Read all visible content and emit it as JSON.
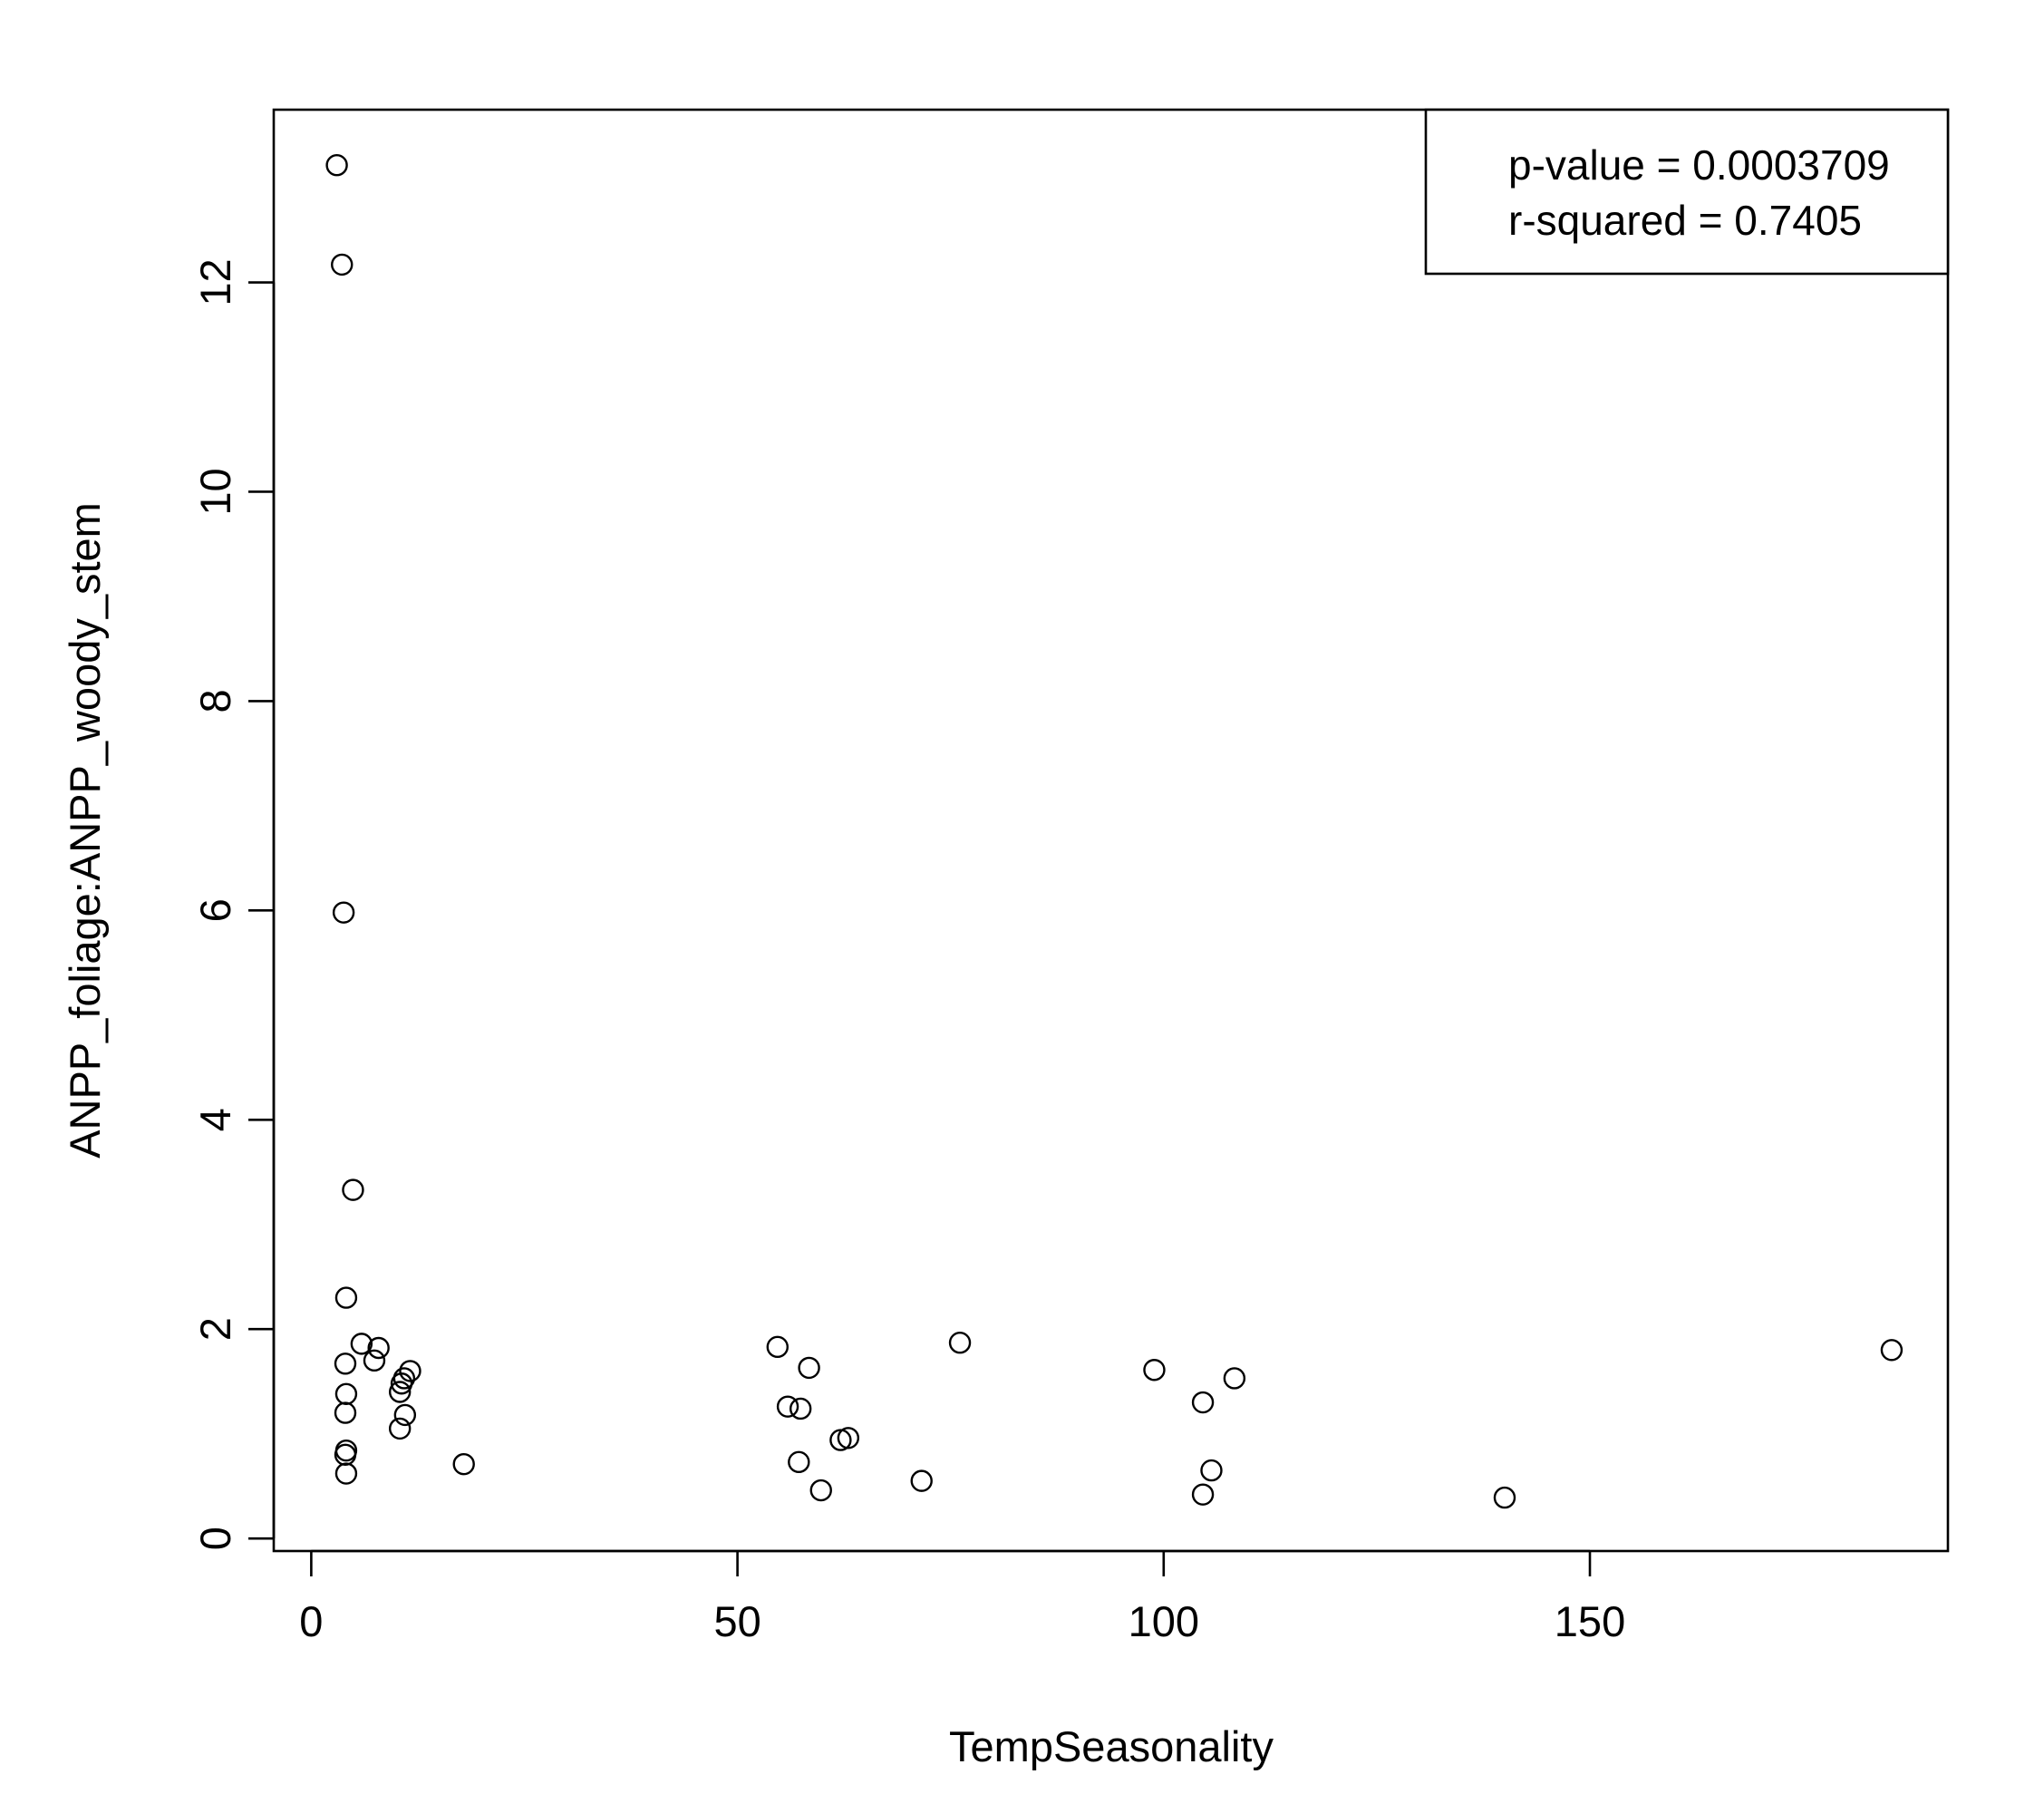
{
  "chart_data": {
    "type": "scatter",
    "title": "",
    "xlabel": "TempSeasonality",
    "ylabel": "ANPP_foliage:ANPP_woody_stem",
    "xlim": [
      -4.4,
      192
    ],
    "ylim": [
      -0.12,
      13.65
    ],
    "xticks": [
      0,
      50,
      100,
      150
    ],
    "yticks": [
      0,
      2,
      4,
      6,
      8,
      10,
      12
    ],
    "grid": false,
    "legend_position": "top-right",
    "legend": {
      "lines": [
        "p-value = 0.0003709",
        "r-squared = 0.7405"
      ]
    },
    "series": [
      {
        "marker": "open-circle",
        "color": "#000000",
        "points": [
          [
            3.0,
            13.12
          ],
          [
            3.6,
            12.17
          ],
          [
            3.8,
            5.98
          ],
          [
            4.9,
            3.33
          ],
          [
            4.1,
            2.3
          ],
          [
            4.0,
            1.67
          ],
          [
            4.1,
            1.38
          ],
          [
            4.0,
            1.2
          ],
          [
            4.1,
            0.84
          ],
          [
            4.0,
            0.8
          ],
          [
            4.1,
            0.62
          ],
          [
            5.9,
            1.86
          ],
          [
            7.9,
            1.82
          ],
          [
            7.4,
            1.7
          ],
          [
            11.6,
            1.6
          ],
          [
            10.9,
            1.53
          ],
          [
            10.6,
            1.48
          ],
          [
            10.4,
            1.4
          ],
          [
            11.0,
            1.18
          ],
          [
            10.4,
            1.05
          ],
          [
            17.9,
            0.71
          ],
          [
            54.7,
            1.83
          ],
          [
            58.4,
            1.63
          ],
          [
            55.9,
            1.26
          ],
          [
            57.4,
            1.24
          ],
          [
            57.2,
            0.73
          ],
          [
            59.8,
            0.46
          ],
          [
            62.1,
            0.94
          ],
          [
            63.0,
            0.96
          ],
          [
            71.6,
            0.55
          ],
          [
            76.1,
            1.87
          ],
          [
            98.9,
            1.61
          ],
          [
            104.6,
            1.3
          ],
          [
            108.3,
            1.53
          ],
          [
            105.6,
            0.65
          ],
          [
            104.6,
            0.42
          ],
          [
            140.0,
            0.39
          ],
          [
            185.4,
            1.8
          ]
        ]
      }
    ]
  }
}
